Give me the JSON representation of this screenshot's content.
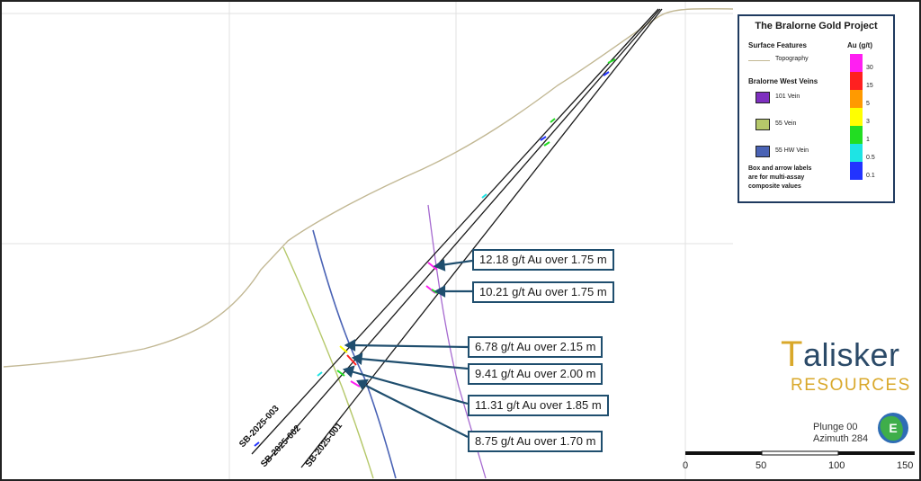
{
  "legend": {
    "title": "The Bralorne Gold Project",
    "surface_header": "Surface Features",
    "topography_label": "Topography",
    "veins_header": "Bralorne West Veins",
    "veins": [
      {
        "label": "101 Vein",
        "color": "#7e2fbf"
      },
      {
        "label": "55 Vein",
        "color": "#b5c86a"
      },
      {
        "label": "55 HW Vein",
        "color": "#4a63b5"
      }
    ],
    "note": [
      "Box and arrow labels",
      "are for multi-assay",
      "composite values"
    ],
    "au_header": "Au (g/t)",
    "scale_ticks": [
      "30",
      "15",
      "5",
      "3",
      "1",
      "0.5",
      "0.1"
    ],
    "scale_colors": [
      "#ff1ff2",
      "#ff2020",
      "#ff9a00",
      "#ffff00",
      "#22dd22",
      "#1ee4e4",
      "#2233ff"
    ]
  },
  "callouts": [
    "12.18 g/t Au over 1.75 m",
    "10.21 g/t Au over 1.75 m",
    "6.78 g/t Au over 2.15 m",
    "9.41 g/t Au over 2.00 m",
    "11.31 g/t Au over 1.85 m",
    "8.75 g/t Au over 1.70 m"
  ],
  "drillholes": [
    "SB-2025-003",
    "SB-2025-002",
    "SB-2025-001"
  ],
  "logo": {
    "first_letter": "T",
    "rest": "alisker",
    "sub": "RESOURCES"
  },
  "view": {
    "plunge": "Plunge 00",
    "azimuth": "Azimuth 284"
  },
  "scale_bar": [
    "0",
    "50",
    "100",
    "150"
  ],
  "colors": {
    "topography": "#c2b894",
    "callout_border": "#1f4e6e",
    "arrow": "#1f4e6e",
    "drillhole": "#1a1a1a"
  }
}
